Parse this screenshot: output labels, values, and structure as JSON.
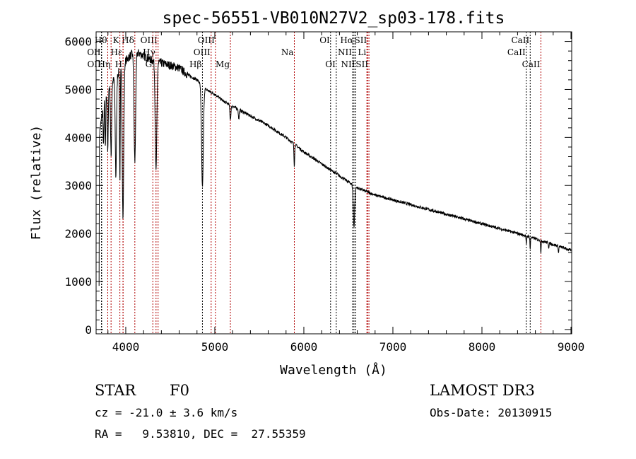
{
  "chart_data": {
    "type": "line",
    "title": "spec-56551-VB010N27V2_sp03-178.fits",
    "xlabel": "Wavelength (Å)",
    "ylabel": "Flux (relative)",
    "xlim": [
      3667,
      9008
    ],
    "ylim": [
      -90,
      6200
    ],
    "xticks": [
      4000,
      5000,
      6000,
      7000,
      8000,
      9000
    ],
    "yticks": [
      0,
      1000,
      2000,
      3000,
      4000,
      5000,
      6000
    ],
    "grid": false,
    "continuum": [
      [
        3700,
        4000
      ],
      [
        3750,
        4700
      ],
      [
        3800,
        5000
      ],
      [
        3900,
        5300
      ],
      [
        4000,
        5600
      ],
      [
        4100,
        5800
      ],
      [
        4200,
        5700
      ],
      [
        4300,
        5600
      ],
      [
        4400,
        5550
      ],
      [
        4500,
        5500
      ],
      [
        4600,
        5450
      ],
      [
        4700,
        5300
      ],
      [
        4800,
        5200
      ],
      [
        4900,
        5000
      ],
      [
        5000,
        4900
      ],
      [
        5100,
        4750
      ],
      [
        5200,
        4650
      ],
      [
        5400,
        4450
      ],
      [
        5600,
        4250
      ],
      [
        5800,
        4000
      ],
      [
        6000,
        3700
      ],
      [
        6200,
        3450
      ],
      [
        6400,
        3200
      ],
      [
        6600,
        2950
      ],
      [
        6800,
        2800
      ],
      [
        7000,
        2700
      ],
      [
        7500,
        2450
      ],
      [
        8000,
        2200
      ],
      [
        8500,
        1950
      ],
      [
        9000,
        1650
      ]
    ],
    "absorption": [
      [
        3750,
        900,
        4
      ],
      [
        3771,
        1100,
        4
      ],
      [
        3798,
        1300,
        5
      ],
      [
        3835,
        1500,
        6
      ],
      [
        3889,
        2100,
        7
      ],
      [
        3934,
        2300,
        4
      ],
      [
        3969,
        3200,
        8
      ],
      [
        4102,
        2300,
        9
      ],
      [
        4340,
        2300,
        9
      ],
      [
        4861,
        2100,
        10
      ],
      [
        5175,
        300,
        6
      ],
      [
        5270,
        200,
        5
      ],
      [
        5893,
        450,
        4
      ],
      [
        6563,
        850,
        8
      ],
      [
        8498,
        200,
        3
      ],
      [
        8542,
        250,
        3
      ],
      [
        8662,
        250,
        3
      ],
      [
        8750,
        100,
        3
      ],
      [
        8860,
        150,
        3
      ]
    ],
    "noise": 60,
    "line_markers": [
      {
        "label": "Hθ",
        "wave": 3798,
        "row": 0,
        "color": "#b00000"
      },
      {
        "label": "K",
        "wave": 3934,
        "row": 0,
        "color": "#b00000"
      },
      {
        "label": "Hδ",
        "wave": 4102,
        "row": 0,
        "color": "#b00000"
      },
      {
        "label": "OIII",
        "wave": 4363,
        "row": 0,
        "color": "#b00000"
      },
      {
        "label": "OIII",
        "wave": 5007,
        "row": 0,
        "color": "#b00000"
      },
      {
        "label": "OI",
        "wave": 6300,
        "row": 0,
        "color": "#000000"
      },
      {
        "label": "Hα",
        "wave": 6563,
        "row": 0,
        "color": "#000000"
      },
      {
        "label": "SII",
        "wave": 6716,
        "row": 0,
        "color": "#b00000"
      },
      {
        "label": "CaII",
        "wave": 8542,
        "row": 0,
        "color": "#000000"
      },
      {
        "label": "OII",
        "wave": 3727,
        "row": 1,
        "color": "#000000"
      },
      {
        "label": "Hε",
        "wave": 3970,
        "row": 1,
        "color": "#b00000"
      },
      {
        "label": "Hγ",
        "wave": 4340,
        "row": 1,
        "color": "#b00000"
      },
      {
        "label": "OIII",
        "wave": 4959,
        "row": 1,
        "color": "#b00000"
      },
      {
        "label": "Na",
        "wave": 5893,
        "row": 1,
        "color": "#b00000"
      },
      {
        "label": "NII",
        "wave": 6548,
        "row": 1,
        "color": "#000000"
      },
      {
        "label": "Li",
        "wave": 6708,
        "row": 1,
        "color": "#b00000"
      },
      {
        "label": "CaII",
        "wave": 8498,
        "row": 1,
        "color": "#000000"
      },
      {
        "label": "OII",
        "wave": 3729,
        "row": 2,
        "color": "#000000"
      },
      {
        "label": "Hη",
        "wave": 3835,
        "row": 2,
        "color": "#b00000"
      },
      {
        "label": "H",
        "wave": 3969,
        "row": 2,
        "color": "#b00000"
      },
      {
        "label": "G",
        "wave": 4304,
        "row": 2,
        "color": "#b00000"
      },
      {
        "label": "Hβ",
        "wave": 4861,
        "row": 2,
        "color": "#000000"
      },
      {
        "label": "Mg",
        "wave": 5175,
        "row": 2,
        "color": "#b00000"
      },
      {
        "label": "OI",
        "wave": 6364,
        "row": 2,
        "color": "#000000"
      },
      {
        "label": "NII",
        "wave": 6583,
        "row": 2,
        "color": "#000000"
      },
      {
        "label": "SII",
        "wave": 6731,
        "row": 2,
        "color": "#b00000"
      },
      {
        "label": "CaII",
        "wave": 8662,
        "row": 2,
        "color": "#b00000"
      }
    ]
  },
  "info": {
    "class": "STAR",
    "subclass": "F0",
    "cz": "cz = -21.0 ± 3.6 km/s",
    "radec": "RA =   9.53810, DEC =  27.55359",
    "survey": "LAMOST DR3",
    "obsdate": "Obs-Date: 20130915"
  }
}
